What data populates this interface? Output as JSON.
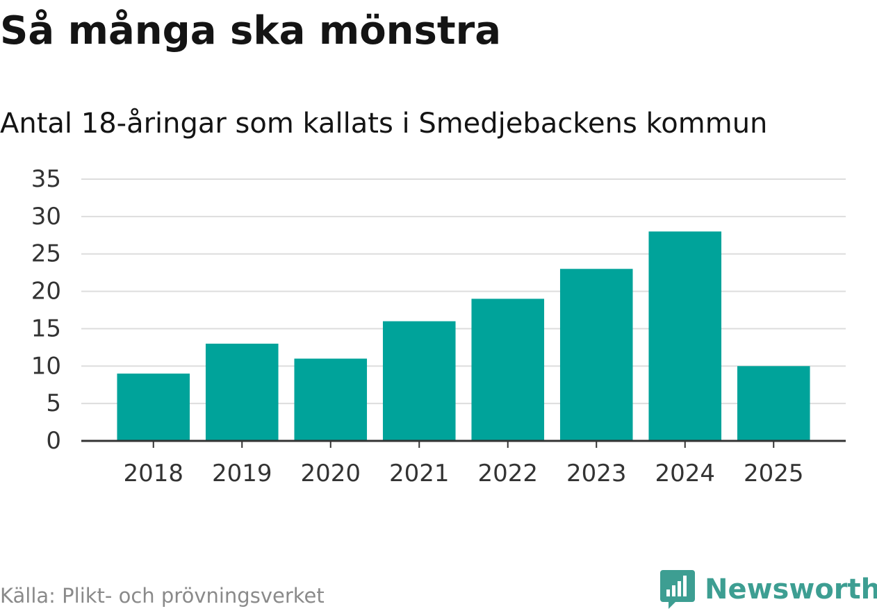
{
  "chart_data": {
    "type": "bar",
    "title": "Så många ska mönstra",
    "subtitle": "Antal 18-åringar som kallats i Smedjebackens kommun",
    "categories": [
      "2018",
      "2019",
      "2020",
      "2021",
      "2022",
      "2023",
      "2024",
      "2025"
    ],
    "values": [
      9,
      13,
      11,
      16,
      19,
      23,
      28,
      10
    ],
    "ylim": [
      0,
      35
    ],
    "yticks": [
      0,
      5,
      10,
      15,
      20,
      25,
      30,
      35
    ],
    "xlabel": "",
    "ylabel": "",
    "grid": true,
    "bar_color": "#00a39a"
  },
  "footer": {
    "source": "Källa: Plikt- och prövningsverket",
    "brand": "Newsworthy",
    "brand_icon": "newsworthy-logo-icon"
  },
  "colors": {
    "bar": "#00a39a",
    "grid": "#dddddd",
    "axis": "#333333",
    "brand": "#3d9e92"
  }
}
